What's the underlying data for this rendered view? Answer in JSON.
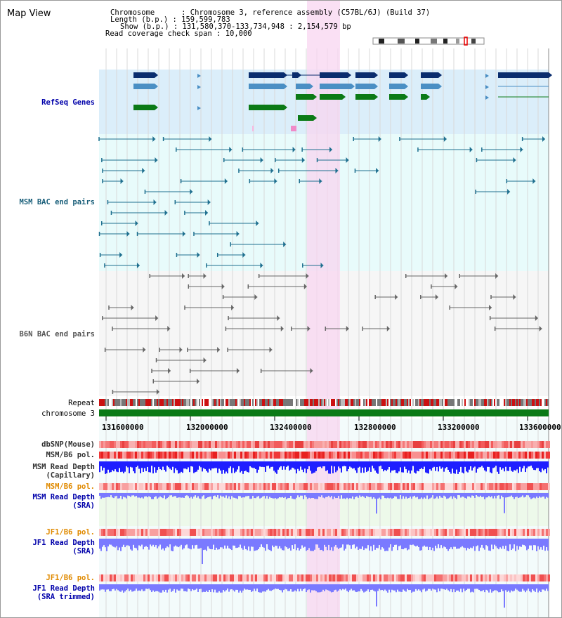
{
  "title": "Map View",
  "info": {
    "chromosome_label": "Chromosome      : ",
    "chromosome_value": "Chromosome 3, reference assembly (C57BL/6J) (Build 37)",
    "length_label": "Length (b.p.) : ",
    "length_value": "159,599,783",
    "show_label": "Show (b.p.) : ",
    "show_value": "131,580,370-133,734,948 : 2,154,579 bp",
    "coverage_label": "Read coverage check span : ",
    "coverage_value": "10,000"
  },
  "tracks": {
    "refseq": "RefSeq Genes",
    "msm_bac": "MSM BAC end pairs",
    "b6n_bac": "B6N BAC end pairs",
    "repeat": "Repeat",
    "chromosome": "chromosome 3",
    "dbsnp": "dbSNP(Mouse)",
    "msm_b6_pol": "MSM/B6 pol.",
    "msm_depth_cap_1": "MSM Read Depth",
    "msm_depth_cap_2": "(Capillary)",
    "msm_b6_pol_2": "MSM/B6 pol.",
    "msm_depth_sra_1": "MSM Read Depth",
    "msm_depth_sra_2": "(SRA)",
    "jf1_b6_pol": "JF1/B6 pol.",
    "jf1_depth_1": "JF1 Read Depth",
    "jf1_depth_2": "(SRA)",
    "jf1_b6_pol_2": "JF1/B6 pol.",
    "jf1_trim_1": "JF1 Read Depth",
    "jf1_trim_2": "(SRA trimmed)"
  },
  "axis_ticks": [
    "131600000",
    "132000000",
    "132400000",
    "132800000",
    "133200000",
    "133600000"
  ],
  "colors": {
    "refseq_bg": "#dbeefa",
    "msm_bac_bg": "#e8fbfb",
    "b6n_bac_bg": "#f6f6f6",
    "highlight": "#f8d6f0",
    "gene_navy": "#0a2d6e",
    "gene_blue": "#4a8fc4",
    "gene_green": "#0b7a16",
    "bac_teal": "#1e6f8f",
    "bac_gray": "#666666",
    "chrom_green": "#0b7a16",
    "depth_blue": "#1f1fff",
    "depth_light": "#7a7aff",
    "label_blue": "#0000aa",
    "label_orange": "#e08a00",
    "label_teal": "#1a5f7a"
  }
}
